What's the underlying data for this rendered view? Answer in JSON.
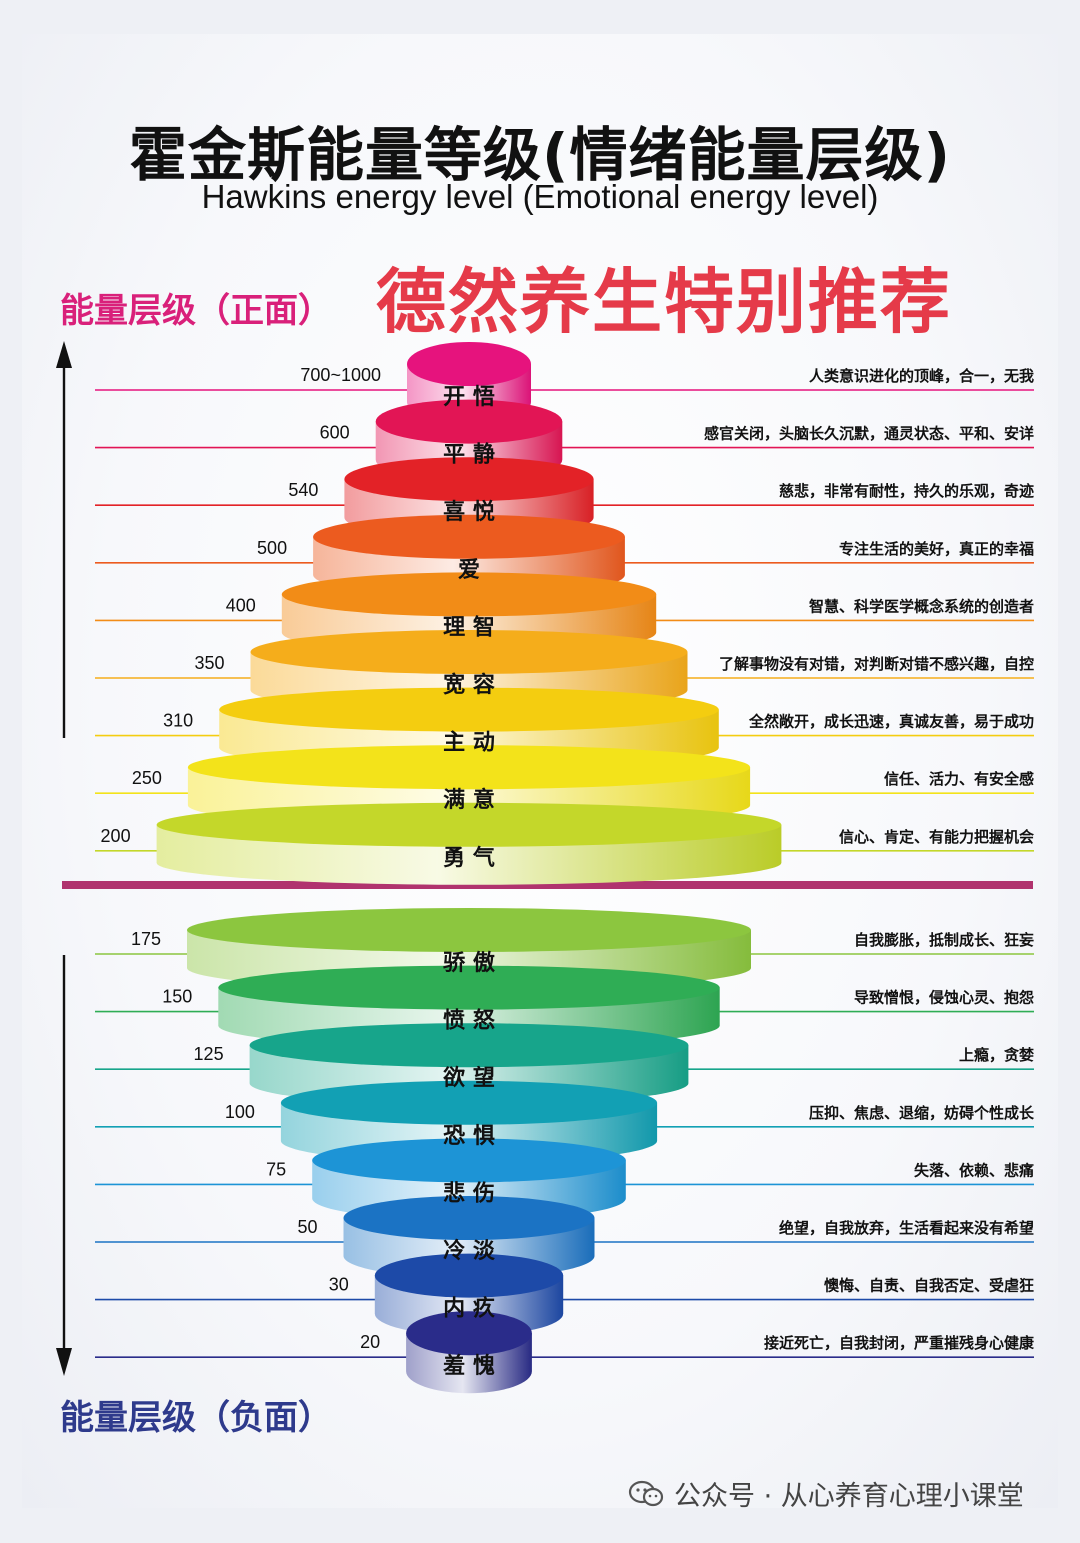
{
  "title_cn": "霍金斯能量等级(情绪能量层级)",
  "title_en": "Hawkins energy level (Emotional energy level)",
  "recommend": "德然养生特别推荐",
  "positive_label": "能量层级（正面）",
  "negative_label": "能量层级（负面）",
  "watermark": {
    "icon": "wechat-icon",
    "text": "公众号 · 从心养育心理小课堂"
  },
  "divider_color": "#b0336e",
  "positive_levels": [
    {
      "value": "700~1000",
      "name": "开 悟",
      "desc": "人类意识进化的顶峰，合一，无我",
      "color": "#e6137d"
    },
    {
      "value": "600",
      "name": "平 静",
      "desc": "感官关闭，头脑长久沉默，通灵状态、平和、安详",
      "color": "#e21555"
    },
    {
      "value": "540",
      "name": "喜 悦",
      "desc": "慈悲，非常有耐性，持久的乐观，奇迹",
      "color": "#e32227"
    },
    {
      "value": "500",
      "name": "爱",
      "desc": "专注生活的美好，真正的幸福",
      "color": "#ec5b1f"
    },
    {
      "value": "400",
      "name": "理 智",
      "desc": "智慧、科学医学概念系统的创造者",
      "color": "#f28c17"
    },
    {
      "value": "350",
      "name": "宽 容",
      "desc": "了解事物没有对错，对判断对错不感兴趣，自控",
      "color": "#f5ad1b"
    },
    {
      "value": "310",
      "name": "主 动",
      "desc": "全然敞开，成长迅速，真诚友善，易于成功",
      "color": "#f4cd10"
    },
    {
      "value": "250",
      "name": "满 意",
      "desc": "信任、活力、有安全感",
      "color": "#f3e31a"
    },
    {
      "value": "200",
      "name": "勇 气",
      "desc": "信心、肯定、有能力把握机会",
      "color": "#c4d72a"
    }
  ],
  "negative_levels": [
    {
      "value": "175",
      "name": "骄 傲",
      "desc": "自我膨胀，抵制成长、狂妄",
      "color": "#8cc63f"
    },
    {
      "value": "150",
      "name": "愤 怒",
      "desc": "导致憎恨，侵蚀心灵、抱怨",
      "color": "#2fad55"
    },
    {
      "value": "125",
      "name": "欲 望",
      "desc": "上瘾，贪婪",
      "color": "#17a58b"
    },
    {
      "value": "100",
      "name": "恐 惧",
      "desc": "压抑、焦虑、退缩，妨碍个性成长",
      "color": "#12a0b4"
    },
    {
      "value": "75",
      "name": "悲 伤",
      "desc": "失落、依赖、悲痛",
      "color": "#1d94d6"
    },
    {
      "value": "50",
      "name": "冷 淡",
      "desc": "绝望，自我放弃，生活看起来没有希望",
      "color": "#1b73c4"
    },
    {
      "value": "30",
      "name": "内 疚",
      "desc": "懊悔、自责、自我否定、受虐狂",
      "color": "#1d4aa8"
    },
    {
      "value": "20",
      "name": "羞 愧",
      "desc": "接近死亡，自我封闭，严重摧残身心健康",
      "color": "#2a2c8a"
    }
  ]
}
